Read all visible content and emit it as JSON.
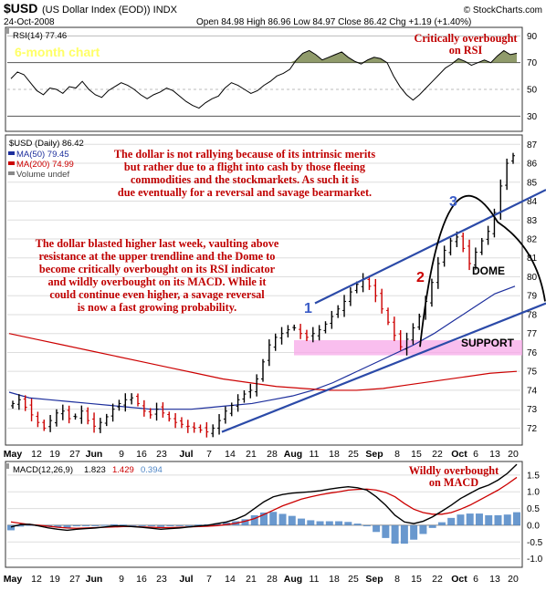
{
  "header": {
    "symbol": "$USD",
    "description": "(US Dollar Index (EOD)) INDX",
    "date": "24-Oct-2008",
    "ohlc": "Open 84.98  High 86.96  Low 84.97  Close 86.42  Chg +1.19 (+1.40%)",
    "credit": "© StockCharts.com"
  },
  "rsi_panel": {
    "label": "RSI(14) 77.46",
    "banner": "6-month chart",
    "note_line1": "Critically overbought",
    "note_line2": "on RSI",
    "ticks": [
      "90",
      "70",
      "50",
      "30"
    ]
  },
  "price_panel": {
    "label": "$USD (Daily) 86.42",
    "ma50_label": "MA(50) 79.45",
    "ma200_label": "MA(200) 74.99",
    "volume_label": "Volume undef",
    "ticks": [
      "87",
      "86",
      "85",
      "84",
      "83",
      "82",
      "81",
      "80",
      "79",
      "78",
      "77",
      "76",
      "75",
      "74",
      "73",
      "72"
    ],
    "support_label": "SUPPORT",
    "dome_label": "DOME",
    "marker1": "1",
    "marker2": "2",
    "marker3": "3",
    "comment_top": [
      "The dollar is not rallying because of its intrinsic merits",
      "but rather due to a flight into cash by those fleeing",
      "commodities and the stockmarkets. As such it is",
      "due eventually for a reversal and savage bearmarket."
    ],
    "comment_left": [
      "The dollar blasted higher last week, vaulting above",
      "resistance at the upper trendline and the Dome to",
      "become critically overbought on its RSI indicator",
      "and wildly overbought on its MACD. While it",
      "could continue even higher, a savage reversal",
      "is now a fast growing probability."
    ]
  },
  "x_axis": {
    "labels": [
      "May",
      "12",
      "19",
      "27",
      "Jun",
      "9",
      "16",
      "23",
      "Jul",
      "7",
      "14",
      "21",
      "28",
      "Aug",
      "11",
      "18",
      "25",
      "Sep",
      "8",
      "15",
      "22",
      "Oct",
      "6",
      "13",
      "20"
    ]
  },
  "macd_panel": {
    "label": "MACD(12,26,9)",
    "macd_value": "1.823",
    "signal_value": "1.429",
    "hist_value": "0.394",
    "note_line1": "Wildly overbought",
    "note_line2": "on MACD",
    "ticks": [
      "1.5",
      "1.0",
      "0.5",
      "0.0",
      "-0.5",
      "-1.0"
    ]
  },
  "colors": {
    "price_bar_up": "#000000",
    "price_bar_down": "#cc0000",
    "ma50": "#1c2e9c",
    "ma200": "#cc0000",
    "trendline": "#2b4aa8",
    "support_band": "#f7a8e8",
    "annotation": "#c00000",
    "banner": "#ffff66",
    "rsi_fill": "#6b7a3a",
    "macd_hist": "#4f86c6"
  },
  "chart_data": [
    {
      "type": "line",
      "title": "RSI(14) 77.46",
      "ylim": [
        20,
        95
      ],
      "series": [
        {
          "name": "RSI(14)",
          "values": [
            58,
            63,
            61,
            55,
            49,
            46,
            51,
            50,
            47,
            52,
            51,
            56,
            50,
            46,
            44,
            49,
            52,
            55,
            53,
            50,
            46,
            43,
            46,
            48,
            51,
            49,
            45,
            41,
            38,
            36,
            40,
            43,
            45,
            51,
            55,
            53,
            50,
            47,
            49,
            53,
            56,
            60,
            62,
            65,
            72,
            77,
            79,
            76,
            72,
            74,
            76,
            78,
            74,
            71,
            69,
            72,
            74,
            73,
            70,
            60,
            52,
            46,
            42,
            46,
            51,
            56,
            61,
            66,
            69,
            73,
            71,
            68,
            70,
            72,
            70,
            75,
            79,
            76,
            77
          ]
        }
      ]
    },
    {
      "type": "line",
      "title": "$USD (Daily) 86.42",
      "ylim": [
        71.2,
        87.4
      ],
      "note": "daily high/low bars",
      "series": [
        {
          "name": "$USD close",
          "values": [
            73.3,
            73.5,
            73.1,
            72.7,
            72.3,
            72.0,
            72.4,
            72.8,
            72.9,
            72.5,
            72.6,
            72.9,
            72.4,
            72.1,
            72.3,
            72.6,
            73.0,
            73.3,
            73.5,
            73.6,
            73.3,
            72.9,
            72.7,
            73.0,
            72.8,
            72.5,
            72.3,
            72.2,
            72.1,
            72.0,
            71.9,
            71.8,
            72.0,
            72.4,
            72.9,
            73.2,
            73.5,
            73.8,
            74.0,
            74.6,
            75.5,
            76.4,
            76.8,
            77.0,
            77.2,
            77.3,
            77.0,
            76.8,
            77.0,
            77.2,
            77.5,
            77.9,
            78.3,
            78.7,
            79.2,
            79.6,
            79.9,
            79.5,
            79.0,
            78.3,
            77.6,
            76.9,
            76.3,
            76.7,
            77.3,
            77.9,
            78.7,
            79.7,
            80.7,
            81.4,
            81.9,
            82.1,
            81.5,
            80.7,
            81.3,
            81.9,
            82.4,
            83.4,
            84.8,
            86.0,
            86.4
          ]
        },
        {
          "name": "MA(50)",
          "values": [
            73.9,
            73.6,
            73.5,
            73.4,
            73.3,
            73.2,
            73.1,
            73.0,
            73.0,
            73.0,
            73.1,
            73.2,
            73.3,
            73.5,
            73.7,
            74.0,
            74.4,
            74.9,
            75.4,
            75.9,
            76.4,
            77.0,
            77.7,
            78.4,
            79.1,
            79.5
          ]
        },
        {
          "name": "MA(200)",
          "values": [
            77.0,
            76.7,
            76.4,
            76.1,
            75.8,
            75.5,
            75.2,
            74.9,
            74.6,
            74.4,
            74.2,
            74.1,
            74.0,
            74.0,
            74.1,
            74.3,
            74.5,
            74.7,
            74.9,
            75.0
          ]
        }
      ]
    },
    {
      "type": "line",
      "title": "MACD(12,26,9) 1.823, 1.429, 0.394",
      "ylim": [
        -1.2,
        1.85
      ],
      "series": [
        {
          "name": "MACD",
          "values": [
            -0.05,
            0.02,
            0.03,
            -0.02,
            -0.08,
            -0.12,
            -0.15,
            -0.12,
            -0.1,
            -0.08,
            -0.05,
            -0.02,
            -0.02,
            -0.04,
            -0.06,
            -0.09,
            -0.12,
            -0.1,
            -0.08,
            -0.05,
            -0.02,
            0.0,
            0.05,
            0.1,
            0.18,
            0.3,
            0.5,
            0.7,
            0.85,
            0.92,
            0.96,
            0.98,
            1.0,
            1.03,
            1.08,
            1.12,
            1.15,
            1.12,
            1.05,
            0.85,
            0.6,
            0.3,
            0.1,
            0.05,
            0.12,
            0.25,
            0.42,
            0.6,
            0.8,
            0.95,
            1.1,
            1.2,
            1.35,
            1.55,
            1.82
          ]
        },
        {
          "name": "Signal",
          "values": [
            0.1,
            0.06,
            0.02,
            0.0,
            -0.03,
            -0.06,
            -0.08,
            -0.09,
            -0.08,
            -0.07,
            -0.06,
            -0.05,
            -0.04,
            -0.04,
            -0.05,
            -0.06,
            -0.07,
            -0.07,
            -0.06,
            -0.05,
            -0.04,
            -0.03,
            -0.01,
            0.02,
            0.06,
            0.12,
            0.2,
            0.32,
            0.45,
            0.58,
            0.68,
            0.78,
            0.85,
            0.91,
            0.96,
            1.0,
            1.05,
            1.07,
            1.08,
            1.05,
            0.98,
            0.85,
            0.65,
            0.48,
            0.38,
            0.33,
            0.33,
            0.38,
            0.48,
            0.6,
            0.75,
            0.9,
            1.05,
            1.23,
            1.43
          ]
        },
        {
          "name": "Histogram",
          "values": [
            -0.15,
            -0.04,
            0.01,
            -0.02,
            -0.05,
            -0.06,
            -0.07,
            -0.03,
            -0.02,
            -0.01,
            0.01,
            0.03,
            0.02,
            0.0,
            -0.01,
            -0.03,
            -0.05,
            -0.03,
            -0.02,
            0.0,
            0.02,
            0.03,
            0.06,
            0.08,
            0.12,
            0.18,
            0.3,
            0.38,
            0.4,
            0.34,
            0.28,
            0.2,
            0.15,
            0.12,
            0.12,
            0.12,
            0.1,
            0.05,
            -0.03,
            -0.2,
            -0.38,
            -0.55,
            -0.55,
            -0.43,
            -0.26,
            -0.08,
            0.09,
            0.22,
            0.32,
            0.35,
            0.35,
            0.3,
            0.3,
            0.32,
            0.39
          ]
        }
      ]
    }
  ]
}
